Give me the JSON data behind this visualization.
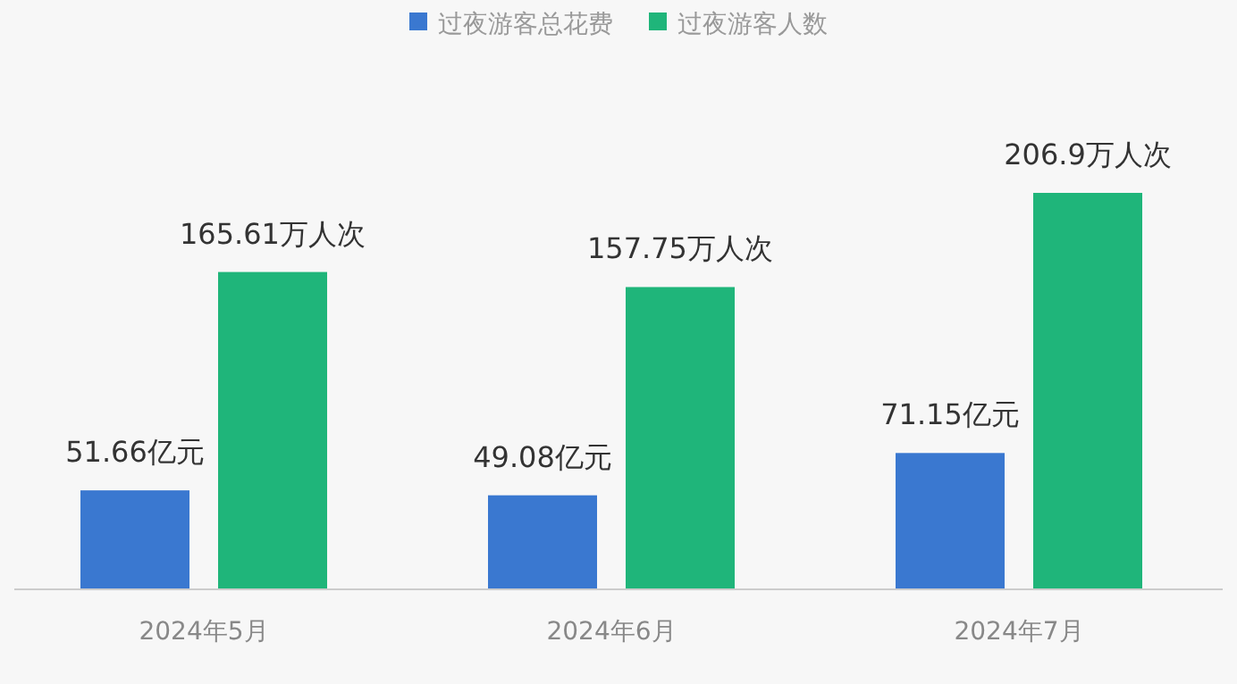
{
  "chart_data": {
    "type": "bar",
    "categories": [
      "2024年5月",
      "2024年6月",
      "2024年7月"
    ],
    "series": [
      {
        "name": "过夜游客总花费",
        "color": "#3a78d0",
        "values": [
          51.66,
          49.08,
          71.15
        ],
        "value_labels": [
          "51.66亿元",
          "49.08亿元",
          "71.15亿元"
        ]
      },
      {
        "name": "过夜游客人数",
        "color": "#1fb57a",
        "values": [
          165.61,
          157.75,
          206.9
        ],
        "value_labels": [
          "165.61万人次",
          "157.75万人次",
          "206.9万人次"
        ]
      }
    ],
    "legend": "top"
  }
}
